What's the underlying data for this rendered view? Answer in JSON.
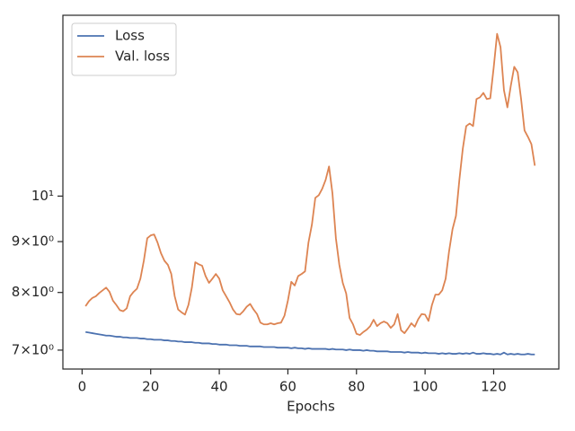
{
  "chart_data": {
    "type": "line",
    "xlabel": "Epochs",
    "x": [
      1,
      2,
      3,
      4,
      5,
      6,
      7,
      8,
      9,
      10,
      11,
      12,
      13,
      14,
      15,
      16,
      17,
      18,
      19,
      20,
      21,
      22,
      23,
      24,
      25,
      26,
      27,
      28,
      29,
      30,
      31,
      32,
      33,
      34,
      35,
      36,
      37,
      38,
      39,
      40,
      41,
      42,
      43,
      44,
      45,
      46,
      47,
      48,
      49,
      50,
      51,
      52,
      53,
      54,
      55,
      56,
      57,
      58,
      59,
      60,
      61,
      62,
      63,
      64,
      65,
      66,
      67,
      68,
      69,
      70,
      71,
      72,
      73,
      74,
      75,
      76,
      77,
      78,
      79,
      80,
      81,
      82,
      83,
      84,
      85,
      86,
      87,
      88,
      89,
      90,
      91,
      92,
      93,
      94,
      95,
      96,
      97,
      98,
      99,
      100,
      101,
      102,
      103,
      104,
      105,
      106,
      107,
      108,
      109,
      110,
      111,
      112,
      113,
      114,
      115,
      116,
      117,
      118,
      119,
      120,
      121,
      122,
      123,
      124,
      125,
      126,
      127,
      128,
      129,
      130,
      131,
      132
    ],
    "series": [
      {
        "name": "Loss",
        "color": "#4c72b0",
        "values": [
          7.3,
          7.29,
          7.28,
          7.27,
          7.26,
          7.25,
          7.24,
          7.24,
          7.23,
          7.22,
          7.22,
          7.21,
          7.21,
          7.2,
          7.2,
          7.2,
          7.19,
          7.19,
          7.18,
          7.18,
          7.17,
          7.17,
          7.17,
          7.16,
          7.16,
          7.15,
          7.15,
          7.14,
          7.14,
          7.13,
          7.13,
          7.13,
          7.12,
          7.12,
          7.11,
          7.11,
          7.11,
          7.1,
          7.1,
          7.09,
          7.09,
          7.09,
          7.08,
          7.08,
          7.08,
          7.07,
          7.07,
          7.07,
          7.06,
          7.06,
          7.06,
          7.06,
          7.05,
          7.05,
          7.05,
          7.05,
          7.04,
          7.04,
          7.04,
          7.04,
          7.03,
          7.04,
          7.03,
          7.03,
          7.02,
          7.03,
          7.02,
          7.02,
          7.02,
          7.02,
          7.02,
          7.01,
          7.02,
          7.01,
          7.01,
          7.01,
          7.0,
          7.01,
          7.0,
          7.0,
          7.0,
          6.99,
          7.0,
          6.99,
          6.99,
          6.98,
          6.98,
          6.98,
          6.98,
          6.97,
          6.97,
          6.97,
          6.97,
          6.96,
          6.97,
          6.96,
          6.96,
          6.96,
          6.95,
          6.96,
          6.95,
          6.95,
          6.95,
          6.94,
          6.95,
          6.94,
          6.95,
          6.94,
          6.94,
          6.95,
          6.94,
          6.95,
          6.94,
          6.96,
          6.94,
          6.94,
          6.95,
          6.94,
          6.94,
          6.93,
          6.94,
          6.93,
          6.96,
          6.93,
          6.94,
          6.93,
          6.94,
          6.93,
          6.93,
          6.94,
          6.93,
          6.93
        ]
      },
      {
        "name": "Val. loss",
        "color": "#dd8452",
        "values": [
          7.75,
          7.84,
          7.9,
          7.93,
          7.99,
          8.04,
          8.09,
          8.01,
          7.85,
          7.77,
          7.68,
          7.66,
          7.71,
          7.93,
          8.01,
          8.07,
          8.26,
          8.61,
          9.07,
          9.13,
          9.15,
          8.98,
          8.76,
          8.61,
          8.53,
          8.35,
          7.93,
          7.69,
          7.64,
          7.6,
          7.77,
          8.09,
          8.58,
          8.54,
          8.51,
          8.31,
          8.18,
          8.26,
          8.35,
          8.26,
          8.04,
          7.93,
          7.82,
          7.69,
          7.61,
          7.6,
          7.66,
          7.74,
          7.79,
          7.69,
          7.61,
          7.46,
          7.43,
          7.43,
          7.45,
          7.43,
          7.45,
          7.46,
          7.58,
          7.85,
          8.2,
          8.13,
          8.31,
          8.35,
          8.4,
          8.98,
          9.36,
          9.96,
          10.02,
          10.17,
          10.38,
          10.71,
          10.06,
          9.07,
          8.53,
          8.18,
          7.98,
          7.54,
          7.43,
          7.27,
          7.25,
          7.3,
          7.34,
          7.4,
          7.51,
          7.4,
          7.45,
          7.48,
          7.45,
          7.37,
          7.43,
          7.61,
          7.33,
          7.28,
          7.36,
          7.45,
          7.39,
          7.52,
          7.61,
          7.6,
          7.49,
          7.77,
          7.96,
          7.96,
          8.04,
          8.26,
          8.8,
          9.26,
          9.55,
          10.38,
          11.16,
          11.76,
          11.83,
          11.76,
          12.52,
          12.57,
          12.7,
          12.52,
          12.54,
          13.46,
          14.56,
          14.12,
          12.78,
          12.28,
          12.91,
          13.49,
          13.32,
          12.52,
          11.64,
          11.47,
          11.28,
          10.73
        ]
      }
    ],
    "xlim": [
      -5.6,
      139
    ],
    "xticks": [
      0,
      20,
      40,
      60,
      80,
      100,
      120
    ],
    "ylim": [
      6.7,
      15.2
    ],
    "log_y": true,
    "yticks": [
      {
        "value": 7,
        "label": "7×10⁰"
      },
      {
        "value": 8,
        "label": "8×10⁰"
      },
      {
        "value": 9,
        "label": "9×10⁰"
      },
      {
        "value": 10,
        "label": "10¹"
      }
    ],
    "legend": "upper left"
  }
}
